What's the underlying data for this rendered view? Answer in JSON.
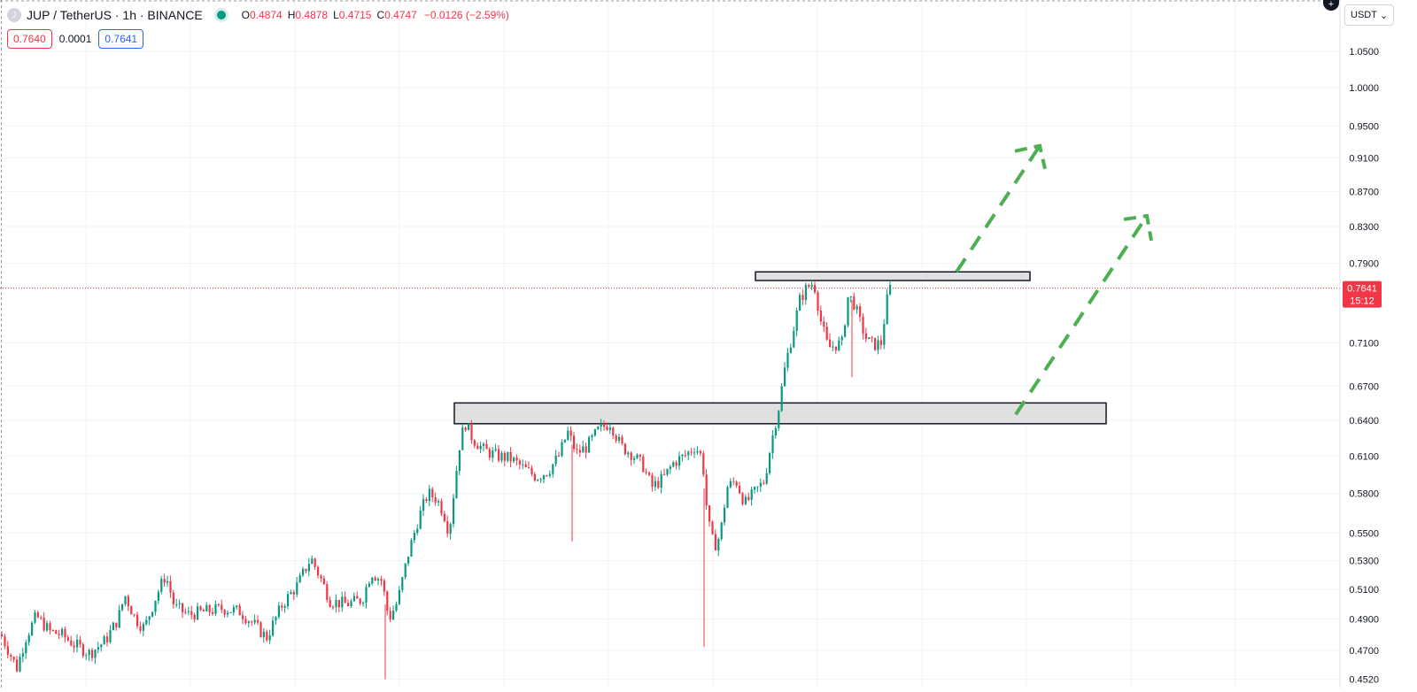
{
  "header": {
    "symbol_title": "JUP / TetherUS · 1h · BINANCE",
    "logo_letter": "J",
    "ohlc": {
      "o_label": "O",
      "o_value": "0.4874",
      "h_label": "H",
      "h_value": "0.4878",
      "l_label": "L",
      "l_value": "0.4715",
      "c_label": "C",
      "c_value": "0.4747",
      "change": "−0.0126 (−2.59%)"
    }
  },
  "quote": {
    "sell": "0.7640",
    "spread": "0.0001",
    "buy": "0.7641"
  },
  "toolbar": {
    "currency": "USDT",
    "currency_caret": "⌄",
    "add_symbol": "+"
  },
  "colors": {
    "up": "#089981",
    "down": "#f23645",
    "projection": "#4caf50",
    "zone_fill": "#e0e0e0",
    "grid": "#f0f3fa"
  },
  "price_label": {
    "price": "0.7641",
    "countdown": "15:12"
  },
  "chart_data": {
    "type": "candlestick",
    "symbol": "JUP / TetherUS",
    "interval": "1h",
    "exchange": "BINANCE",
    "y_scale": "log",
    "ylim": [
      0.447,
      1.125
    ],
    "y_ticks": [
      "1.0500",
      "1.0000",
      "0.9500",
      "0.9100",
      "0.8700",
      "0.8300",
      "0.7900",
      "0.7100",
      "0.6700",
      "0.6400",
      "0.6100",
      "0.5800",
      "0.5500",
      "0.5300",
      "0.5100",
      "0.4900",
      "0.4700",
      "0.4520"
    ],
    "last_price": 0.7641,
    "grid": true,
    "price_path": [
      [
        0,
        0.48
      ],
      [
        10,
        0.468
      ],
      [
        18,
        0.459
      ],
      [
        28,
        0.478
      ],
      [
        40,
        0.492
      ],
      [
        55,
        0.482
      ],
      [
        68,
        0.48
      ],
      [
        82,
        0.474
      ],
      [
        100,
        0.468
      ],
      [
        118,
        0.476
      ],
      [
        132,
        0.49
      ],
      [
        140,
        0.506
      ],
      [
        152,
        0.49
      ],
      [
        162,
        0.484
      ],
      [
        175,
        0.505
      ],
      [
        186,
        0.52
      ],
      [
        196,
        0.498
      ],
      [
        212,
        0.493
      ],
      [
        230,
        0.495
      ],
      [
        250,
        0.497
      ],
      [
        270,
        0.495
      ],
      [
        285,
        0.487
      ],
      [
        300,
        0.478
      ],
      [
        318,
        0.5
      ],
      [
        335,
        0.513
      ],
      [
        350,
        0.532
      ],
      [
        362,
        0.516
      ],
      [
        372,
        0.502
      ],
      [
        390,
        0.5
      ],
      [
        408,
        0.503
      ],
      [
        418,
        0.522
      ],
      [
        430,
        0.516
      ],
      [
        438,
        0.49
      ],
      [
        448,
        0.502
      ],
      [
        460,
        0.535
      ],
      [
        472,
        0.562
      ],
      [
        482,
        0.58
      ],
      [
        492,
        0.576
      ],
      [
        500,
        0.565
      ],
      [
        506,
        0.55
      ],
      [
        512,
        0.585
      ],
      [
        518,
        0.62
      ],
      [
        524,
        0.638
      ],
      [
        532,
        0.625
      ],
      [
        545,
        0.615
      ],
      [
        560,
        0.61
      ],
      [
        575,
        0.608
      ],
      [
        590,
        0.6
      ],
      [
        605,
        0.593
      ],
      [
        618,
        0.598
      ],
      [
        630,
        0.61
      ],
      [
        640,
        0.63
      ],
      [
        650,
        0.612
      ],
      [
        662,
        0.618
      ],
      [
        675,
        0.632
      ],
      [
        688,
        0.638
      ],
      [
        700,
        0.618
      ],
      [
        712,
        0.612
      ],
      [
        725,
        0.602
      ],
      [
        735,
        0.585
      ],
      [
        748,
        0.592
      ],
      [
        760,
        0.605
      ],
      [
        772,
        0.61
      ],
      [
        784,
        0.618
      ],
      [
        792,
        0.608
      ],
      [
        798,
        0.56
      ],
      [
        805,
        0.54
      ],
      [
        812,
        0.548
      ],
      [
        820,
        0.585
      ],
      [
        830,
        0.59
      ],
      [
        840,
        0.572
      ],
      [
        850,
        0.58
      ],
      [
        862,
        0.59
      ],
      [
        870,
        0.622
      ],
      [
        878,
        0.65
      ],
      [
        886,
        0.69
      ],
      [
        894,
        0.72
      ],
      [
        902,
        0.752
      ],
      [
        910,
        0.765
      ],
      [
        918,
        0.77
      ],
      [
        926,
        0.73
      ],
      [
        934,
        0.705
      ],
      [
        942,
        0.708
      ],
      [
        950,
        0.71
      ],
      [
        956,
        0.755
      ],
      [
        962,
        0.752
      ],
      [
        970,
        0.73
      ],
      [
        978,
        0.712
      ],
      [
        986,
        0.708
      ],
      [
        994,
        0.71
      ],
      [
        1000,
        0.75
      ],
      [
        1004,
        0.7641
      ]
    ],
    "wicks": [
      [
        435,
        0.452
      ],
      [
        646,
        0.544
      ],
      [
        795,
        0.472
      ],
      [
        962,
        0.678
      ]
    ],
    "zones": [
      {
        "price_top": 0.781,
        "price_bottom": 0.772
      },
      {
        "price_top": 0.655,
        "price_bottom": 0.637
      }
    ],
    "projections": [
      {
        "from": [
          1080,
          0.781
        ],
        "to": [
          1174,
          0.925
        ]
      },
      {
        "from": [
          1147,
          0.645
        ],
        "to": [
          1295,
          0.842
        ]
      }
    ]
  }
}
